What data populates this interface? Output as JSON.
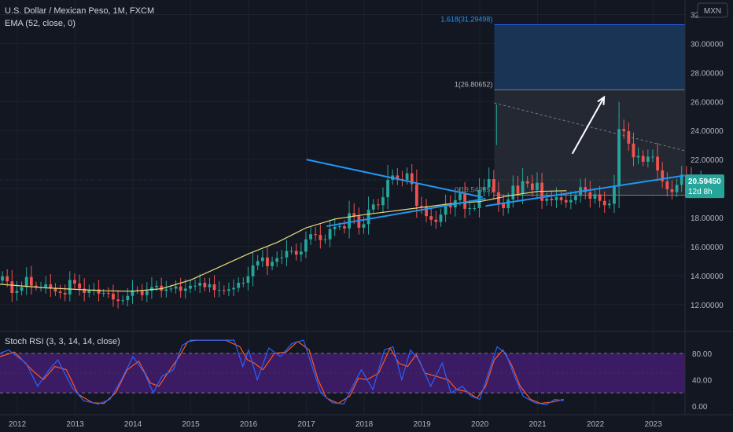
{
  "header": {
    "title": "U.S. Dollar / Mexican Peso, 1M, FXCM",
    "indicator": "EMA (52, close, 0)",
    "currency": "MXN"
  },
  "oscillator": {
    "label": "Stoch RSI (3, 3, 14, 14, close)"
  },
  "price_badge": {
    "price": "20.59450",
    "countdown": "12d 8h"
  },
  "fib_labels": {
    "ext": "1.618(31.29498)",
    "one": "1(26.80652)",
    "zero": "0(19.54365)"
  },
  "colors": {
    "background": "#131722",
    "up": "#26a69a",
    "down": "#ef5350",
    "ema": "#e8dc7c",
    "trend": "#2196f3",
    "stoch_k": "#2962ff",
    "stoch_d": "#ff5722",
    "stoch_band": "#4a1e7a",
    "badge": "#26a69a"
  },
  "chart_data": [
    {
      "type": "candlestick",
      "title": "U.S. Dollar / Mexican Peso, 1M, FXCM",
      "series_name": "EMA (52, close, 0)",
      "x_ticks": [
        "2012",
        "2013",
        "2014",
        "2015",
        "2016",
        "2017",
        "2018",
        "2019",
        "2020",
        "2021",
        "2022",
        "2023"
      ],
      "y_ticks": [
        "12.00000",
        "14.00000",
        "16.00000",
        "18.00000",
        "20.00000",
        "22.00000",
        "24.00000",
        "26.00000",
        "28.00000",
        "30.00000",
        "32.00000"
      ],
      "y_range": [
        10.2,
        33.0
      ],
      "x_range": [
        2011.7,
        2023.55
      ],
      "closes": [
        13.95,
        13.6,
        12.8,
        12.95,
        13.2,
        13.9,
        13.3,
        13.2,
        13.2,
        13.4,
        13.1,
        12.9,
        12.8,
        12.7,
        13.7,
        13.45,
        13.1,
        12.8,
        13.0,
        13.05,
        12.75,
        12.8,
        12.75,
        12.35,
        12.25,
        12.3,
        12.6,
        13.0,
        12.95,
        12.65,
        12.95,
        13.2,
        13.3,
        12.95,
        13.05,
        13.1,
        13.25,
        12.95,
        13.1,
        13.3,
        13.3,
        13.5,
        13.2,
        13.4,
        13.0,
        13.0,
        12.95,
        13.05,
        13.15,
        13.5,
        13.5,
        13.95,
        14.7,
        15.0,
        15.25,
        14.65,
        14.95,
        15.2,
        15.25,
        15.7,
        15.7,
        15.45,
        15.65,
        16.5,
        16.85,
        16.8,
        16.45,
        16.5,
        17.2,
        17.35,
        17.4,
        17.25,
        18.3,
        18.1,
        17.3,
        17.55,
        18.55,
        18.9,
        18.85,
        19.4,
        20.6,
        20.9,
        20.65,
        20.6,
        21.05,
        20.3,
        18.8,
        18.75,
        18.1,
        17.85,
        17.7,
        18.2,
        18.95,
        18.7,
        19.2,
        19.65,
        18.6,
        18.65,
        18.65,
        19.9,
        20.1,
        20.65,
        19.75,
        18.95,
        18.65,
        19.25,
        20.2,
        19.65,
        20.5,
        20.35,
        19.9,
        20.4,
        19.15,
        19.3,
        19.2,
        19.4,
        19.2,
        19.05,
        19.2,
        19.5,
        20.1,
        19.75,
        19.3,
        19.6,
        19.15,
        18.85,
        18.95,
        20.15,
        24.1,
        23.95,
        23.1,
        22.15,
        22.25,
        21.85,
        22.2,
        22.2,
        21.25,
        20.5,
        19.95,
        19.75,
        20.25,
        20.95,
        20.65,
        20.05,
        19.95,
        20.59
      ],
      "ema_52": [
        {
          "x": 2011.7,
          "y": 13.4
        },
        {
          "x": 2012.5,
          "y": 13.15
        },
        {
          "x": 2013.5,
          "y": 12.95
        },
        {
          "x": 2014.0,
          "y": 12.92
        },
        {
          "x": 2014.5,
          "y": 13.1
        },
        {
          "x": 2015.0,
          "y": 13.7
        },
        {
          "x": 2015.5,
          "y": 14.6
        },
        {
          "x": 2016.0,
          "y": 15.5
        },
        {
          "x": 2016.5,
          "y": 16.3
        },
        {
          "x": 2017.0,
          "y": 17.3
        },
        {
          "x": 2017.5,
          "y": 17.9
        },
        {
          "x": 2018.0,
          "y": 18.2
        },
        {
          "x": 2018.5,
          "y": 18.45
        },
        {
          "x": 2019.0,
          "y": 18.7
        },
        {
          "x": 2019.5,
          "y": 18.95
        },
        {
          "x": 2020.0,
          "y": 19.1
        },
        {
          "x": 2020.5,
          "y": 19.5
        },
        {
          "x": 2021.0,
          "y": 19.8
        },
        {
          "x": 2021.5,
          "y": 19.85
        }
      ],
      "annotations": {
        "fib_ext_1618": 31.29498,
        "fib_1": 26.80652,
        "fib_0": 19.54365,
        "last_price": 20.5945
      }
    },
    {
      "type": "line",
      "title": "Stoch RSI (3, 3, 14, 14, close)",
      "y_ticks": [
        "0.00",
        "40.00",
        "80.00"
      ],
      "y_range": [
        -12,
        112
      ],
      "band": [
        20,
        80
      ],
      "series": [
        {
          "name": "K",
          "points": [
            {
              "x": 2011.7,
              "y": 80
            },
            {
              "x": 2011.85,
              "y": 85
            },
            {
              "x": 2012.15,
              "y": 65
            },
            {
              "x": 2012.35,
              "y": 30
            },
            {
              "x": 2012.55,
              "y": 55
            },
            {
              "x": 2012.7,
              "y": 70
            },
            {
              "x": 2012.95,
              "y": 28
            },
            {
              "x": 2013.15,
              "y": 8
            },
            {
              "x": 2013.4,
              "y": 3
            },
            {
              "x": 2013.6,
              "y": 10
            },
            {
              "x": 2013.8,
              "y": 40
            },
            {
              "x": 2014.0,
              "y": 75
            },
            {
              "x": 2014.2,
              "y": 50
            },
            {
              "x": 2014.35,
              "y": 20
            },
            {
              "x": 2014.5,
              "y": 45
            },
            {
              "x": 2014.7,
              "y": 55
            },
            {
              "x": 2014.85,
              "y": 92
            },
            {
              "x": 2015.0,
              "y": 100
            },
            {
              "x": 2015.5,
              "y": 100
            },
            {
              "x": 2015.75,
              "y": 100
            },
            {
              "x": 2015.9,
              "y": 60
            },
            {
              "x": 2016.0,
              "y": 85
            },
            {
              "x": 2016.15,
              "y": 40
            },
            {
              "x": 2016.35,
              "y": 88
            },
            {
              "x": 2016.55,
              "y": 75
            },
            {
              "x": 2016.75,
              "y": 95
            },
            {
              "x": 2016.95,
              "y": 100
            },
            {
              "x": 2017.1,
              "y": 60
            },
            {
              "x": 2017.25,
              "y": 20
            },
            {
              "x": 2017.45,
              "y": 5
            },
            {
              "x": 2017.65,
              "y": 3
            },
            {
              "x": 2017.8,
              "y": 30
            },
            {
              "x": 2017.95,
              "y": 55
            },
            {
              "x": 2018.15,
              "y": 25
            },
            {
              "x": 2018.35,
              "y": 85
            },
            {
              "x": 2018.5,
              "y": 90
            },
            {
              "x": 2018.65,
              "y": 40
            },
            {
              "x": 2018.8,
              "y": 85
            },
            {
              "x": 2018.95,
              "y": 70
            },
            {
              "x": 2019.15,
              "y": 30
            },
            {
              "x": 2019.35,
              "y": 65
            },
            {
              "x": 2019.5,
              "y": 20
            },
            {
              "x": 2019.7,
              "y": 30
            },
            {
              "x": 2019.85,
              "y": 15
            },
            {
              "x": 2020.0,
              "y": 10
            },
            {
              "x": 2020.15,
              "y": 50
            },
            {
              "x": 2020.3,
              "y": 90
            },
            {
              "x": 2020.45,
              "y": 80
            },
            {
              "x": 2020.6,
              "y": 45
            },
            {
              "x": 2020.75,
              "y": 15
            },
            {
              "x": 2020.95,
              "y": 5
            },
            {
              "x": 2021.15,
              "y": 2
            },
            {
              "x": 2021.3,
              "y": 10
            },
            {
              "x": 2021.45,
              "y": 8
            }
          ]
        },
        {
          "name": "D",
          "points": [
            {
              "x": 2011.7,
              "y": 75
            },
            {
              "x": 2011.95,
              "y": 82
            },
            {
              "x": 2012.25,
              "y": 55
            },
            {
              "x": 2012.45,
              "y": 40
            },
            {
              "x": 2012.65,
              "y": 60
            },
            {
              "x": 2012.85,
              "y": 55
            },
            {
              "x": 2013.05,
              "y": 18
            },
            {
              "x": 2013.3,
              "y": 5
            },
            {
              "x": 2013.5,
              "y": 4
            },
            {
              "x": 2013.7,
              "y": 20
            },
            {
              "x": 2013.9,
              "y": 55
            },
            {
              "x": 2014.1,
              "y": 68
            },
            {
              "x": 2014.3,
              "y": 35
            },
            {
              "x": 2014.45,
              "y": 30
            },
            {
              "x": 2014.6,
              "y": 50
            },
            {
              "x": 2014.8,
              "y": 75
            },
            {
              "x": 2014.95,
              "y": 98
            },
            {
              "x": 2015.1,
              "y": 100
            },
            {
              "x": 2015.6,
              "y": 100
            },
            {
              "x": 2015.85,
              "y": 90
            },
            {
              "x": 2015.98,
              "y": 70
            },
            {
              "x": 2016.1,
              "y": 65
            },
            {
              "x": 2016.25,
              "y": 55
            },
            {
              "x": 2016.45,
              "y": 80
            },
            {
              "x": 2016.65,
              "y": 82
            },
            {
              "x": 2016.85,
              "y": 98
            },
            {
              "x": 2017.05,
              "y": 85
            },
            {
              "x": 2017.2,
              "y": 40
            },
            {
              "x": 2017.35,
              "y": 12
            },
            {
              "x": 2017.55,
              "y": 4
            },
            {
              "x": 2017.75,
              "y": 15
            },
            {
              "x": 2017.9,
              "y": 42
            },
            {
              "x": 2018.05,
              "y": 40
            },
            {
              "x": 2018.25,
              "y": 50
            },
            {
              "x": 2018.45,
              "y": 88
            },
            {
              "x": 2018.6,
              "y": 65
            },
            {
              "x": 2018.75,
              "y": 60
            },
            {
              "x": 2018.9,
              "y": 78
            },
            {
              "x": 2019.05,
              "y": 50
            },
            {
              "x": 2019.25,
              "y": 45
            },
            {
              "x": 2019.45,
              "y": 40
            },
            {
              "x": 2019.6,
              "y": 25
            },
            {
              "x": 2019.78,
              "y": 22
            },
            {
              "x": 2019.95,
              "y": 12
            },
            {
              "x": 2020.1,
              "y": 30
            },
            {
              "x": 2020.25,
              "y": 70
            },
            {
              "x": 2020.4,
              "y": 85
            },
            {
              "x": 2020.55,
              "y": 62
            },
            {
              "x": 2020.7,
              "y": 30
            },
            {
              "x": 2020.88,
              "y": 10
            },
            {
              "x": 2021.05,
              "y": 4
            },
            {
              "x": 2021.25,
              "y": 6
            },
            {
              "x": 2021.45,
              "y": 10
            }
          ]
        }
      ]
    }
  ]
}
